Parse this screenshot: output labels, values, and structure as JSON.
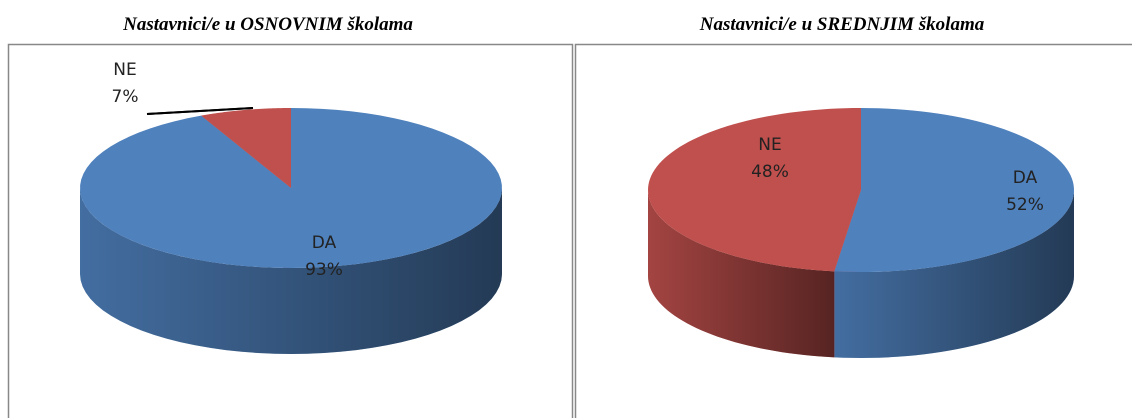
{
  "chart_data": [
    {
      "type": "pie",
      "title": "Nastavnici/e u OSNOVNIM školama",
      "categories": [
        "DA",
        "NE"
      ],
      "values": [
        93,
        7
      ],
      "value_labels": [
        "93%",
        "7%"
      ],
      "colors": [
        "#4f81bd",
        "#c0504d"
      ]
    },
    {
      "type": "pie",
      "title": "Nastavnici/e u SREDNJIM školama",
      "categories": [
        "DA",
        "NE"
      ],
      "values": [
        52,
        48
      ],
      "value_labels": [
        "52%",
        "48%"
      ],
      "colors": [
        "#4f81bd",
        "#c0504d"
      ]
    }
  ]
}
